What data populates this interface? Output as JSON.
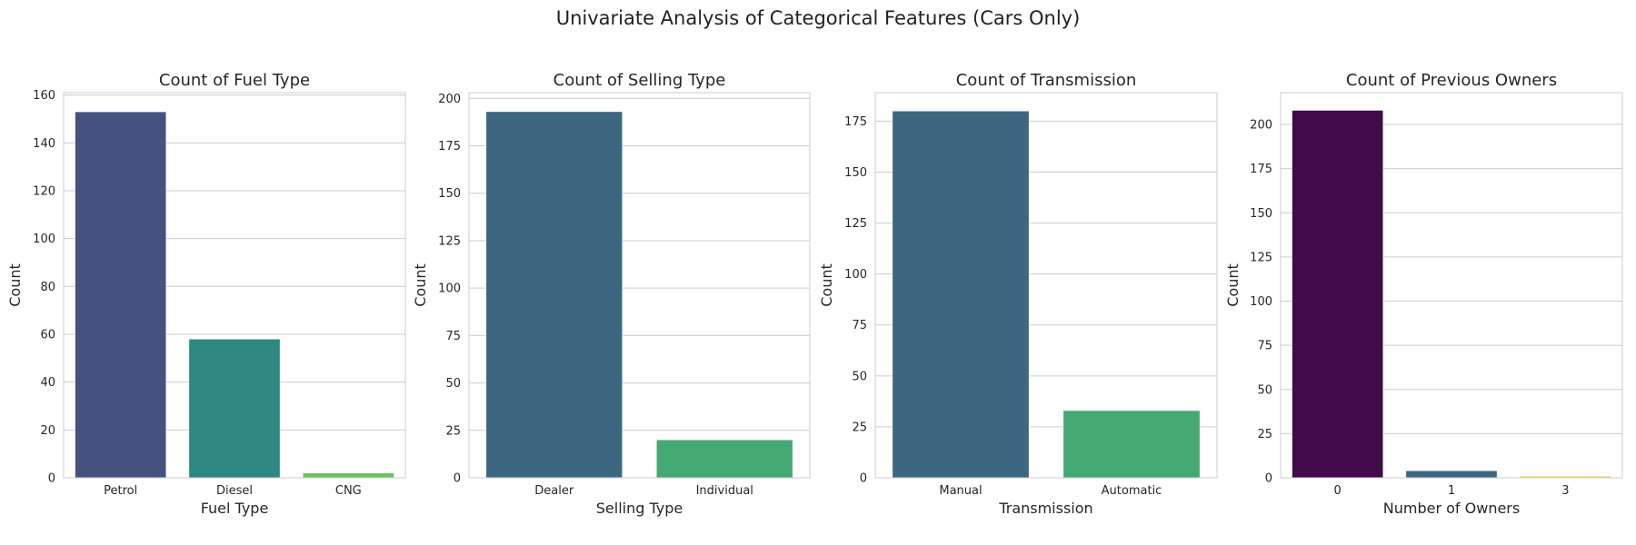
{
  "figure": {
    "suptitle": "Univariate Analysis of Categorical Features (Cars Only)"
  },
  "chart_data": [
    {
      "type": "bar",
      "title": "Count of Fuel Type",
      "xlabel": "Fuel Type",
      "ylabel": "Count",
      "categories": [
        "Petrol",
        "Diesel",
        "CNG"
      ],
      "values": [
        153,
        58,
        2
      ],
      "ylim": [
        0,
        161
      ],
      "yticks": [
        0,
        20,
        40,
        60,
        80,
        100,
        120,
        140,
        160
      ],
      "colors": [
        "#46527e",
        "#2e8780",
        "#6ac260"
      ],
      "grid": "y"
    },
    {
      "type": "bar",
      "title": "Count of Selling Type",
      "xlabel": "Selling Type",
      "ylabel": "Count",
      "categories": [
        "Dealer",
        "Individual"
      ],
      "values": [
        193,
        20
      ],
      "ylim": [
        0,
        203
      ],
      "yticks": [
        0,
        25,
        50,
        75,
        100,
        125,
        150,
        175,
        200
      ],
      "colors": [
        "#3d6781",
        "#45a973"
      ],
      "grid": "y"
    },
    {
      "type": "bar",
      "title": "Count of Transmission",
      "xlabel": "Transmission",
      "ylabel": "Count",
      "categories": [
        "Manual",
        "Automatic"
      ],
      "values": [
        180,
        33
      ],
      "ylim": [
        0,
        189
      ],
      "yticks": [
        0,
        25,
        50,
        75,
        100,
        125,
        150,
        175
      ],
      "colors": [
        "#3d6781",
        "#45a973"
      ],
      "grid": "y"
    },
    {
      "type": "bar",
      "title": "Count of Previous Owners",
      "xlabel": "Number of Owners",
      "ylabel": "Count",
      "categories": [
        "0",
        "1",
        "3"
      ],
      "values": [
        208,
        4,
        1
      ],
      "ylim": [
        0,
        218
      ],
      "yticks": [
        0,
        25,
        50,
        75,
        100,
        125,
        150,
        175,
        200
      ],
      "colors": [
        "#400b48",
        "#3d6781",
        "#e9d55c"
      ],
      "grid": "y"
    }
  ]
}
